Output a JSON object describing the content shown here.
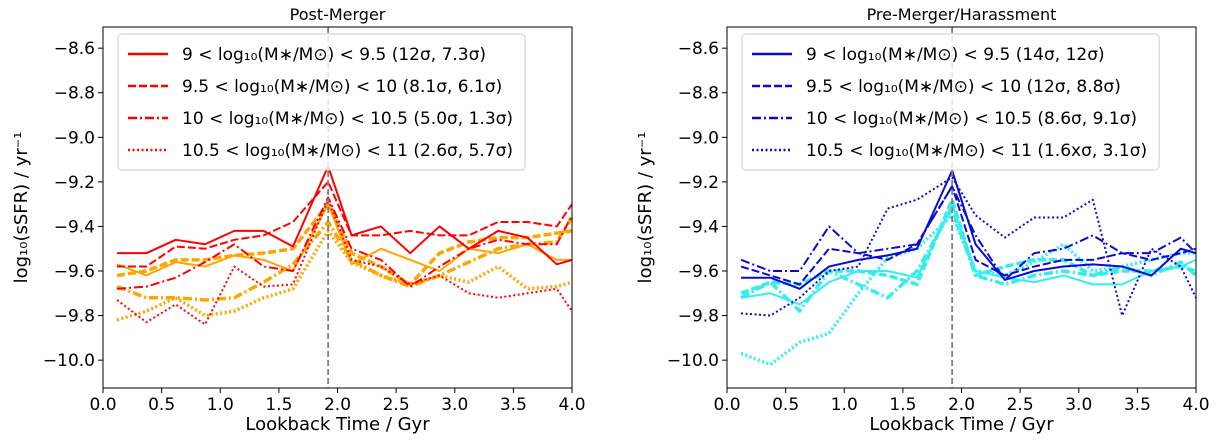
{
  "chart_data": [
    {
      "type": "line",
      "title": "Post-Merger",
      "xlabel": "Lookback Time / Gyr",
      "ylabel": "log₁₀(sSFR) / yr⁻¹",
      "xlim": [
        0,
        4
      ],
      "ylim": [
        -10.125,
        -8.505
      ],
      "xticks": [
        {
          "value": 0,
          "label": "0.0"
        },
        0.5,
        {
          "value": 1,
          "label": "1.0"
        },
        1.5,
        {
          "value": 2,
          "label": "2.0"
        },
        2.5,
        {
          "value": 3,
          "label": "3.0"
        },
        3.5,
        {
          "value": 4,
          "label": "4.0"
        }
      ],
      "yticks": [
        {
          "value": -10,
          "label": "−10.0"
        },
        {
          "value": -9.8,
          "label": "−9.8"
        },
        {
          "value": -9.6,
          "label": "−9.6"
        },
        {
          "value": -9.4,
          "label": "−9.4"
        },
        {
          "value": -9.2,
          "label": "−9.2"
        },
        {
          "value": -9,
          "label": "−9.0"
        },
        {
          "value": -8.8,
          "label": "−8.8"
        },
        {
          "value": -8.6,
          "label": "−8.6"
        }
      ],
      "vline": 1.92,
      "legend": "upper left",
      "x": [
        0.12,
        0.37,
        0.62,
        0.87,
        1.12,
        1.37,
        1.62,
        1.92,
        2.12,
        2.37,
        2.62,
        2.87,
        3.12,
        3.37,
        3.62,
        3.87,
        4.0
      ],
      "series": [
        {
          "name": "9 < log₁₀(M∗/M⊙) < 9.5 (12σ, 7.3σ)",
          "color": "#ff0000",
          "linestyle": "solid",
          "linewidth": 2,
          "values": [
            -9.52,
            -9.52,
            -9.46,
            -9.48,
            -9.42,
            -9.42,
            -9.49,
            -9.13,
            -9.44,
            -9.4,
            -9.52,
            -9.4,
            -9.5,
            -9.42,
            -9.45,
            -9.57,
            -9.55
          ]
        },
        {
          "name": "9.5 < log₁₀(M∗/M⊙) < 10 (8.1σ, 6.1σ)",
          "color": "#ff0000",
          "linestyle": "dashed",
          "linewidth": 2,
          "values": [
            -9.58,
            -9.58,
            -9.49,
            -9.5,
            -9.46,
            -9.44,
            -9.38,
            -9.2,
            -9.44,
            -9.44,
            -9.42,
            -9.44,
            -9.44,
            -9.38,
            -9.38,
            -9.4,
            -9.3
          ]
        },
        {
          "name": "10 < log₁₀(M∗/M⊙) < 10.5 (5.0σ, 1.3σ)",
          "color": "#ff0000",
          "linestyle": "dashdot",
          "linewidth": 2,
          "values": [
            -9.68,
            -9.67,
            -9.63,
            -9.56,
            -9.48,
            -9.58,
            -9.6,
            -9.27,
            -9.5,
            -9.55,
            -9.67,
            -9.58,
            -9.5,
            -9.46,
            -9.48,
            -9.48,
            -9.35
          ]
        },
        {
          "name": "10.5 < log₁₀(M∗/M⊙) < 11 (2.6σ, 5.7σ)",
          "color": "#ff0000",
          "linestyle": "dotted",
          "linewidth": 2,
          "values": [
            -9.73,
            -9.83,
            -9.75,
            -9.84,
            -9.58,
            -9.67,
            -9.66,
            -9.28,
            -9.55,
            -9.58,
            -9.66,
            -9.62,
            -9.7,
            -9.72,
            -9.7,
            -9.68,
            -9.78
          ]
        },
        {
          "color": "#ffa500",
          "linestyle": "solid",
          "linewidth": 2,
          "values": [
            -9.57,
            -9.62,
            -9.56,
            -9.58,
            -9.53,
            -9.55,
            -9.6,
            -9.3,
            -9.57,
            -9.5,
            -9.55,
            -9.6,
            -9.5,
            -9.52,
            -9.48,
            -9.55,
            -9.55
          ]
        },
        {
          "color": "#ffa500",
          "linestyle": "dashed",
          "linewidth": 3.5,
          "values": [
            -9.62,
            -9.6,
            -9.55,
            -9.55,
            -9.53,
            -9.52,
            -9.5,
            -9.3,
            -9.52,
            -9.58,
            -9.66,
            -9.52,
            -9.47,
            -9.45,
            -9.45,
            -9.43,
            -9.42
          ]
        },
        {
          "color": "#ffa500",
          "linestyle": "dashdot",
          "linewidth": 3.5,
          "values": [
            -9.67,
            -9.72,
            -9.72,
            -9.73,
            -9.72,
            -9.65,
            -9.57,
            -9.38,
            -9.55,
            -9.62,
            -9.67,
            -9.62,
            -9.56,
            -9.5,
            -9.48,
            -9.47,
            -9.36
          ]
        },
        {
          "color": "#ffa500",
          "linestyle": "dotted",
          "linewidth": 3.5,
          "values": [
            -9.82,
            -9.78,
            -9.72,
            -9.8,
            -9.78,
            -9.72,
            -9.68,
            -9.42,
            -9.56,
            -9.62,
            -9.66,
            -9.62,
            -9.65,
            -9.58,
            -9.68,
            -9.67,
            -9.65
          ]
        }
      ]
    },
    {
      "type": "line",
      "title": "Pre-Merger/Harassment",
      "xlabel": "Lookback Time / Gyr",
      "ylabel": "log₁₀(sSFR) / yr⁻¹",
      "xlim": [
        0,
        4
      ],
      "ylim": [
        -10.125,
        -8.505
      ],
      "xticks": [
        {
          "value": 0,
          "label": "0.0"
        },
        0.5,
        {
          "value": 1,
          "label": "1.0"
        },
        1.5,
        {
          "value": 2,
          "label": "2.0"
        },
        2.5,
        {
          "value": 3,
          "label": "3.0"
        },
        3.5,
        {
          "value": 4,
          "label": "4.0"
        }
      ],
      "yticks": [
        {
          "value": -10,
          "label": "−10.0"
        },
        {
          "value": -9.8,
          "label": "−9.8"
        },
        {
          "value": -9.6,
          "label": "−9.6"
        },
        {
          "value": -9.4,
          "label": "−9.4"
        },
        {
          "value": -9.2,
          "label": "−9.2"
        },
        {
          "value": -9,
          "label": "−9.0"
        },
        {
          "value": -8.8,
          "label": "−8.8"
        },
        {
          "value": -8.6,
          "label": "−8.6"
        }
      ],
      "vline": 1.92,
      "legend": "upper left",
      "x": [
        0.12,
        0.37,
        0.62,
        0.87,
        1.12,
        1.37,
        1.62,
        1.92,
        2.12,
        2.37,
        2.62,
        2.87,
        3.12,
        3.37,
        3.62,
        3.87,
        4.0
      ],
      "series": [
        {
          "name": "9 < log₁₀(M∗/M⊙) < 9.5 (14σ, 12σ)",
          "color": "#0a0ad8",
          "linestyle": "solid",
          "linewidth": 2,
          "values": [
            -9.63,
            -9.63,
            -9.68,
            -9.58,
            -9.55,
            -9.53,
            -9.5,
            -9.15,
            -9.48,
            -9.64,
            -9.6,
            -9.58,
            -9.57,
            -9.58,
            -9.62,
            -9.5,
            -9.52
          ]
        },
        {
          "name": "9.5 < log₁₀(M∗/M⊙) < 10 (12σ, 8.8σ)",
          "color": "#0a0ad8",
          "linestyle": "dashed",
          "linewidth": 2,
          "values": [
            -9.58,
            -9.62,
            -9.66,
            -9.5,
            -9.52,
            -9.55,
            -9.48,
            -9.22,
            -9.55,
            -9.62,
            -9.58,
            -9.55,
            -9.55,
            -9.52,
            -9.55,
            -9.52,
            -9.5
          ]
        },
        {
          "name": "10 < log₁₀(M∗/M⊙) < 10.5 (8.6σ, 9.1σ)",
          "color": "#0a0ad8",
          "linestyle": "dashdot",
          "linewidth": 2,
          "values": [
            -9.55,
            -9.6,
            -9.6,
            -9.4,
            -9.52,
            -9.5,
            -9.48,
            -9.22,
            -9.44,
            -9.64,
            -9.52,
            -9.5,
            -9.44,
            -9.52,
            -9.52,
            -9.45,
            -9.52
          ]
        },
        {
          "name": "10.5 < log₁₀(M∗/M⊙) < 11 (1.6xσ, 3.1σ)",
          "color": "#0a0ad8",
          "linestyle": "dotted",
          "linewidth": 2,
          "values": [
            -9.79,
            -9.8,
            -9.72,
            -9.6,
            -9.58,
            -9.32,
            -9.28,
            -9.18,
            -9.35,
            -9.45,
            -9.36,
            -9.36,
            -9.28,
            -9.8,
            -9.5,
            -9.58,
            -9.72
          ]
        },
        {
          "color": "#33eeee",
          "linestyle": "solid",
          "linewidth": 2,
          "values": [
            -9.72,
            -9.7,
            -9.75,
            -9.65,
            -9.6,
            -9.6,
            -9.63,
            -9.3,
            -9.6,
            -9.63,
            -9.65,
            -9.62,
            -9.66,
            -9.66,
            -9.6,
            -9.58,
            -9.55
          ]
        },
        {
          "color": "#33eeee",
          "linestyle": "dashed",
          "linewidth": 3.5,
          "values": [
            -9.7,
            -9.65,
            -9.66,
            -9.6,
            -9.6,
            -9.62,
            -9.66,
            -9.28,
            -9.62,
            -9.58,
            -9.55,
            -9.55,
            -9.62,
            -9.6,
            -9.6,
            -9.58,
            -9.6
          ]
        },
        {
          "color": "#33eeee",
          "linestyle": "dashdot",
          "linewidth": 3.5,
          "values": [
            -9.72,
            -9.65,
            -9.78,
            -9.6,
            -9.66,
            -9.72,
            -9.6,
            -9.32,
            -9.62,
            -9.66,
            -9.62,
            -9.6,
            -9.62,
            -9.58,
            -9.62,
            -9.56,
            -9.62
          ]
        },
        {
          "color": "#33eeee",
          "linestyle": "dotted",
          "linewidth": 3.5,
          "values": [
            -9.97,
            -10.02,
            -9.92,
            -9.88,
            -9.7,
            -9.54,
            -9.5,
            -9.35,
            -9.6,
            -9.62,
            -9.56,
            -9.48,
            -9.6,
            -9.58,
            -9.55,
            -9.52,
            -9.52
          ]
        }
      ]
    }
  ]
}
